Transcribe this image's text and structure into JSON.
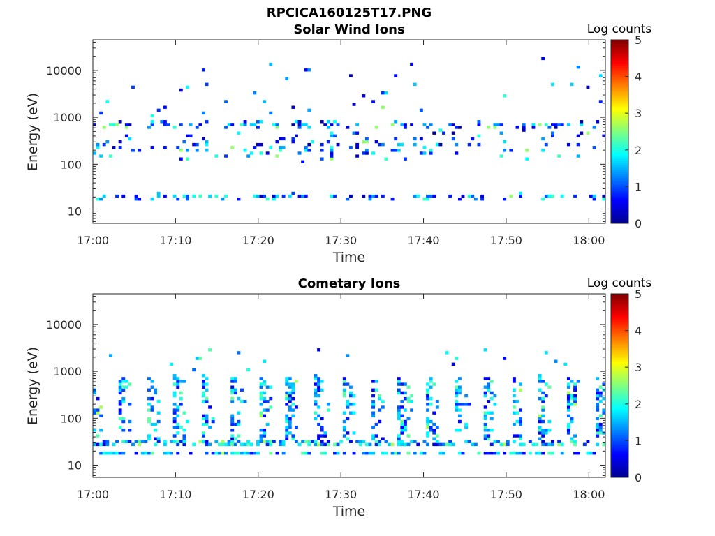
{
  "figure": {
    "title": "RPCICA160125T17.PNG"
  },
  "colors": {
    "colormap": "jet",
    "colormap_stops": [
      "#00008f",
      "#0000ff",
      "#0080ff",
      "#00ffff",
      "#80ff80",
      "#ffff00",
      "#ff8000",
      "#ff0000",
      "#800000"
    ]
  },
  "chart_data": [
    {
      "type": "heatmap",
      "title": "Solar Wind Ions",
      "xlabel": "Time",
      "ylabel": "Energy (eV)",
      "x_ticks": [
        "17:00",
        "17:10",
        "17:20",
        "17:30",
        "17:40",
        "17:50",
        "18:00"
      ],
      "x_range_minutes": [
        0,
        62
      ],
      "y_scale": "log",
      "y_ticks": [
        "10",
        "100",
        "1000",
        "10000"
      ],
      "y_range": [
        5.5,
        45000
      ],
      "colorbar": {
        "label": "Log counts",
        "ticks": [
          "0",
          "1",
          "2",
          "3",
          "4",
          "5"
        ],
        "range": [
          0,
          5
        ]
      },
      "description_values": {
        "energy_bands_eV": [
          20,
          250,
          700
        ],
        "typical_log_counts": [
          0.5,
          1.0,
          1.8
        ],
        "max_log_counts": 2.6
      }
    },
    {
      "type": "heatmap",
      "title": "Cometary Ions",
      "xlabel": "Time",
      "ylabel": "Energy (eV)",
      "x_ticks": [
        "17:00",
        "17:10",
        "17:20",
        "17:30",
        "17:40",
        "17:50",
        "18:00"
      ],
      "x_range_minutes": [
        0,
        62
      ],
      "y_scale": "log",
      "y_ticks": [
        "10",
        "100",
        "1000",
        "10000"
      ],
      "y_range": [
        5.5,
        45000
      ],
      "colorbar": {
        "label": "Log counts",
        "ticks": [
          "0",
          "1",
          "2",
          "3",
          "4",
          "5"
        ],
        "range": [
          0,
          5
        ]
      },
      "description_values": {
        "energy_bands_eV": [
          18,
          30,
          60,
          150,
          400
        ],
        "stripe_period_minutes": 3.4,
        "typical_log_counts": [
          0.8,
          1.5,
          2.0
        ],
        "max_log_counts": 2.7
      }
    }
  ]
}
